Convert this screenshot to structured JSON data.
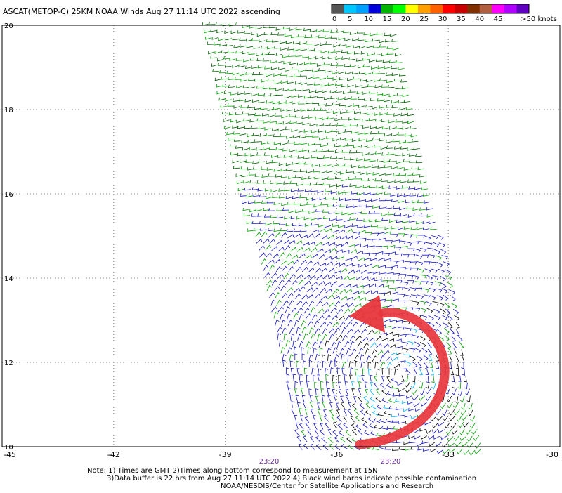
{
  "title": "ASCAT(METOP-C) 25KM NOAA Winds Aug 27 11:14 UTC 2022 ascending",
  "colorbar": {
    "colors": [
      "#555555",
      "#00c8ff",
      "#00a0ff",
      "#0000dc",
      "#00b400",
      "#00ff00",
      "#ffff00",
      "#ffa000",
      "#ff6000",
      "#ff0000",
      "#c80000",
      "#803000",
      "#b06040",
      "#ff00ff",
      "#b000ff",
      "#6000c0"
    ],
    "labels": [
      "0",
      "5",
      "10",
      "15",
      "20",
      "25",
      "30",
      "35",
      "40",
      "45",
      ">50 knots"
    ]
  },
  "axes": {
    "lat_ticks": [
      "10",
      "12",
      "14",
      "16",
      "18",
      "20"
    ],
    "lon_ticks": [
      "-45",
      "-42",
      "-39",
      "-36",
      "-33",
      "-30"
    ]
  },
  "time_labels": [
    "23:20",
    "23:20"
  ],
  "notes": [
    "Note: 1) Times are GMT 2)Times along bottom correspond to measurement at 15N",
    "3)Data buffer is 22 hrs from Aug 27 11:14 UTC 2022 4) Black wind barbs indicate possible contamination",
    "NOAA/NESDIS/Center for Satellite Applications and Research"
  ],
  "map": {
    "lat_range": [
      10,
      20
    ],
    "lon_range": [
      -45,
      -30
    ],
    "annotation": "red-curved-arrow"
  }
}
